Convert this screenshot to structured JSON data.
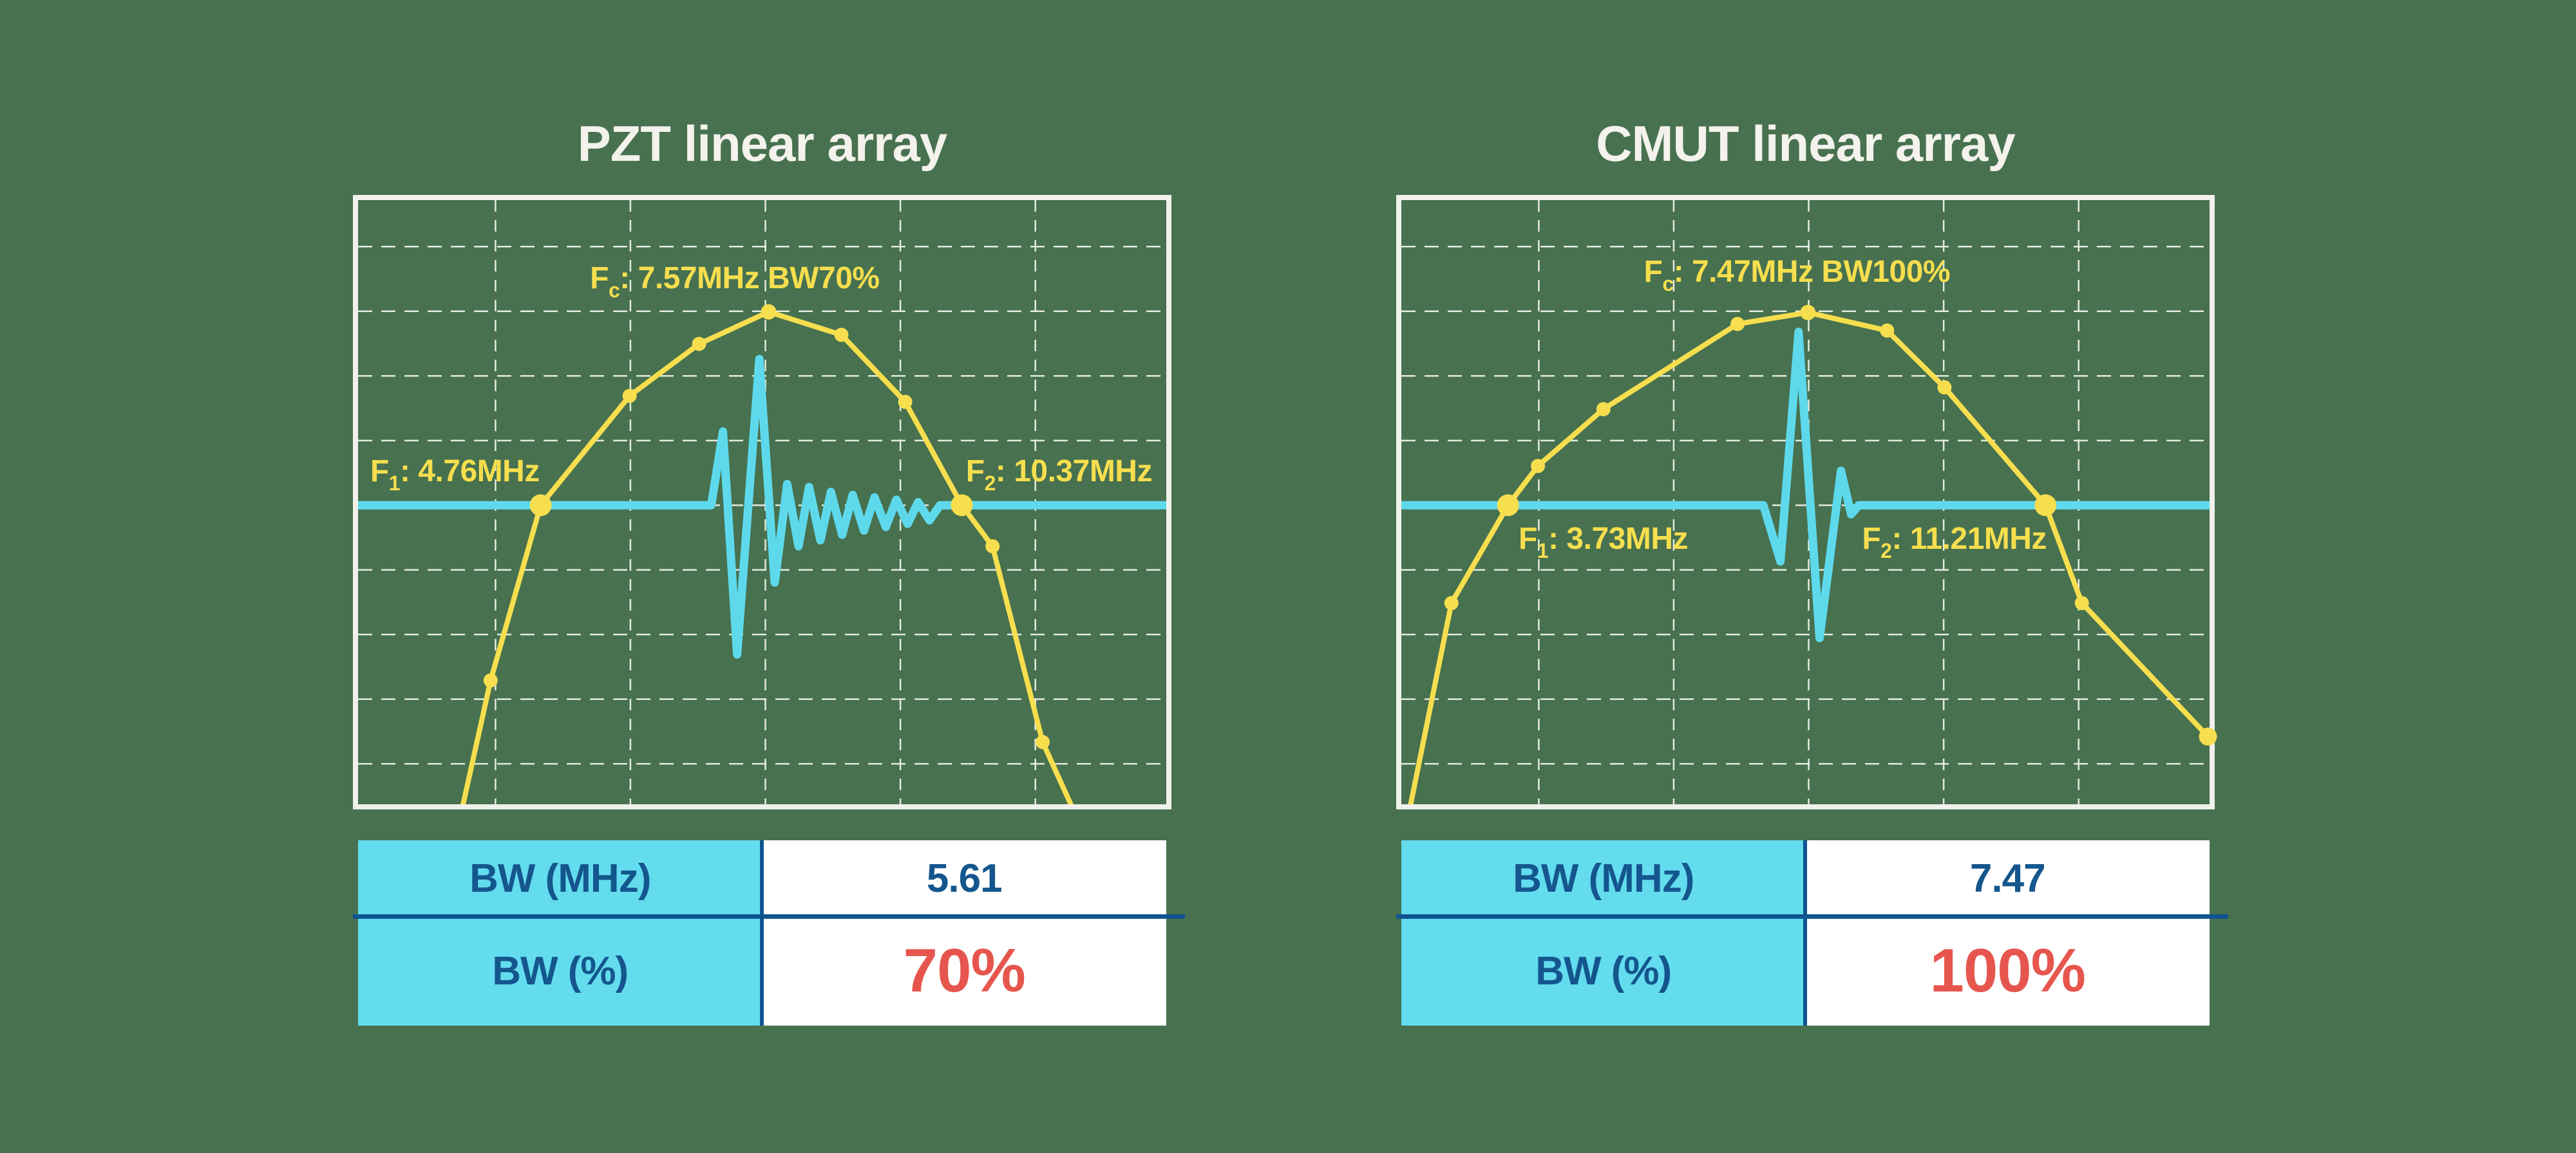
{
  "background_color": "#47714F",
  "palette": {
    "spectrum_yellow": "#F6DE4E",
    "pulse_cyan": "#5ED9EC",
    "table_header_cyan": "#63DCEE",
    "table_text_blue": "#14568D",
    "highlight_red": "#E6564E",
    "frame_white": "#F1F1EB",
    "title_white": "#F3F2EC"
  },
  "charts": [
    {
      "title": "PZT linear array",
      "labels": {
        "fc": {
          "base": "F",
          "sub": "c",
          "rest": ": 7.57MHz BW70%"
        },
        "f1": {
          "base": "F",
          "sub": "1",
          "rest": ": 4.76MHz"
        },
        "f2": {
          "base": "F",
          "sub": "2",
          "rest": ": 10.37MHz"
        }
      },
      "table": {
        "rows": [
          {
            "label": "BW (MHz)",
            "value": "5.61"
          },
          {
            "label": "BW (%)",
            "value": "70%"
          }
        ]
      }
    },
    {
      "title": "CMUT linear array",
      "labels": {
        "fc": {
          "base": "F",
          "sub": "c",
          "rest": ": 7.47MHz BW100%"
        },
        "f1": {
          "base": "F",
          "sub": "1",
          "rest": ": 3.73MHz"
        },
        "f2": {
          "base": "F",
          "sub": "2",
          "rest": ": 11.21MHz"
        }
      },
      "table": {
        "rows": [
          {
            "label": "BW (MHz)",
            "value": "7.47"
          },
          {
            "label": "BW (%)",
            "value": "100%"
          }
        ]
      }
    }
  ],
  "chart_data": [
    {
      "type": "line",
      "title": "PZT linear array",
      "annotations": {
        "fc_mhz": 7.57,
        "bw_pct": 70,
        "f1_mhz": 4.76,
        "f2_mhz": 10.37,
        "bw_mhz": 5.61
      },
      "legend": "none",
      "grid": {
        "on": true,
        "v_frac": [
          0.17,
          0.337,
          0.504,
          0.671,
          0.838
        ],
        "h_frac": [
          0.077,
          0.184,
          0.291,
          0.398,
          0.505,
          0.612,
          0.719,
          0.826,
          0.933
        ]
      },
      "baseline_frac": 0.505,
      "marker_color": "#F6DE4E",
      "markers_frac": [
        [
          0.164,
          0.795,
          11
        ],
        [
          0.226,
          0.505,
          17
        ],
        [
          0.336,
          0.324,
          11
        ],
        [
          0.422,
          0.238,
          11
        ],
        [
          0.508,
          0.185,
          12
        ],
        [
          0.598,
          0.223,
          11
        ],
        [
          0.677,
          0.334,
          11
        ],
        [
          0.747,
          0.505,
          17
        ],
        [
          0.785,
          0.573,
          11
        ],
        [
          0.847,
          0.897,
          11
        ]
      ],
      "series": [
        {
          "name": "frequency-spectrum",
          "color": "#F6DE4E",
          "width": 8,
          "points_frac": [
            [
              0.125,
              1.03
            ],
            [
              0.164,
              0.795
            ],
            [
              0.226,
              0.505
            ],
            [
              0.336,
              0.324
            ],
            [
              0.422,
              0.238
            ],
            [
              0.508,
              0.185
            ],
            [
              0.598,
              0.223
            ],
            [
              0.677,
              0.334
            ],
            [
              0.747,
              0.505
            ],
            [
              0.785,
              0.573
            ],
            [
              0.847,
              0.897
            ],
            [
              0.892,
              1.03
            ]
          ]
        },
        {
          "name": "pulse-echo-waveform",
          "color": "#5ED9EC",
          "width": 13,
          "points_frac": [
            [
              0.0,
              0.505
            ],
            [
              0.437,
              0.505
            ],
            [
              0.4515,
              0.383
            ],
            [
              0.469,
              0.752
            ],
            [
              0.4965,
              0.263
            ],
            [
              0.5155,
              0.633
            ],
            [
              0.531,
              0.47
            ],
            [
              0.545,
              0.573
            ],
            [
              0.558,
              0.475
            ],
            [
              0.572,
              0.563
            ],
            [
              0.585,
              0.483
            ],
            [
              0.599,
              0.554
            ],
            [
              0.612,
              0.488
            ],
            [
              0.626,
              0.547
            ],
            [
              0.639,
              0.492
            ],
            [
              0.653,
              0.541
            ],
            [
              0.666,
              0.496
            ],
            [
              0.68,
              0.536
            ],
            [
              0.693,
              0.5
            ],
            [
              0.707,
              0.53
            ],
            [
              0.72,
              0.505
            ],
            [
              1.0,
              0.505
            ]
          ]
        }
      ]
    },
    {
      "type": "line",
      "title": "CMUT linear array",
      "annotations": {
        "fc_mhz": 7.47,
        "bw_pct": 100,
        "f1_mhz": 3.73,
        "f2_mhz": 11.21,
        "bw_mhz": 7.47
      },
      "legend": "none",
      "grid": {
        "on": true,
        "v_frac": [
          0.17,
          0.337,
          0.504,
          0.671,
          0.838
        ],
        "h_frac": [
          0.077,
          0.184,
          0.291,
          0.398,
          0.505,
          0.612,
          0.719,
          0.826,
          0.933
        ]
      },
      "baseline_frac": 0.505,
      "marker_color": "#F6DE4E",
      "markers_frac": [
        [
          0.062,
          0.667,
          11
        ],
        [
          0.132,
          0.505,
          17
        ],
        [
          0.169,
          0.44,
          11
        ],
        [
          0.25,
          0.346,
          11
        ],
        [
          0.416,
          0.205,
          11
        ],
        [
          0.503,
          0.186,
          12
        ],
        [
          0.601,
          0.216,
          11
        ],
        [
          0.672,
          0.31,
          11
        ],
        [
          0.797,
          0.505,
          17
        ],
        [
          0.842,
          0.667,
          11
        ],
        [
          0.998,
          0.888,
          14
        ]
      ],
      "series": [
        {
          "name": "frequency-spectrum",
          "color": "#F6DE4E",
          "width": 8,
          "points_frac": [
            [
              0.007,
              1.03
            ],
            [
              0.062,
              0.667
            ],
            [
              0.132,
              0.505
            ],
            [
              0.169,
              0.44
            ],
            [
              0.25,
              0.346
            ],
            [
              0.416,
              0.205
            ],
            [
              0.503,
              0.186
            ],
            [
              0.601,
              0.216
            ],
            [
              0.672,
              0.31
            ],
            [
              0.797,
              0.505
            ],
            [
              0.842,
              0.667
            ],
            [
              0.998,
              0.888
            ]
          ]
        },
        {
          "name": "pulse-echo-waveform",
          "color": "#5ED9EC",
          "width": 13,
          "points_frac": [
            [
              0.0,
              0.505
            ],
            [
              0.448,
              0.505
            ],
            [
              0.469,
              0.598
            ],
            [
              0.4915,
              0.218
            ],
            [
              0.5175,
              0.725
            ],
            [
              0.544,
              0.448
            ],
            [
              0.5565,
              0.52
            ],
            [
              0.566,
              0.505
            ],
            [
              1.0,
              0.505
            ]
          ]
        }
      ]
    }
  ]
}
